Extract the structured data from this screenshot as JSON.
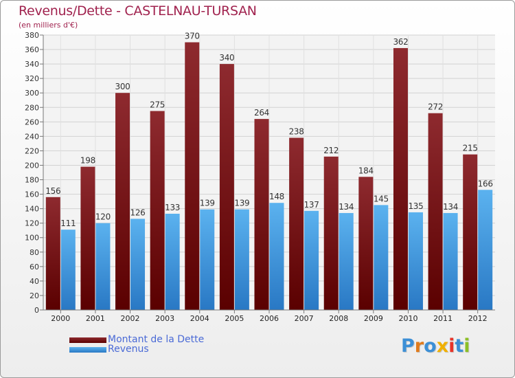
{
  "chart_data": {
    "type": "bar",
    "title": "Revenus/Dette - CASTELNAU-TURSAN",
    "subtitle": "(en milliers d'€)",
    "categories": [
      "2000",
      "2001",
      "2002",
      "2003",
      "2004",
      "2005",
      "2006",
      "2007",
      "2008",
      "2009",
      "2010",
      "2011",
      "2012"
    ],
    "series": [
      {
        "name": "Montant de la Dette",
        "color": "#7a1519",
        "values": [
          156,
          198,
          300,
          275,
          370,
          340,
          264,
          238,
          212,
          184,
          362,
          272,
          215
        ]
      },
      {
        "name": "Revenus",
        "color": "#3f9ee6",
        "values": [
          111,
          120,
          126,
          133,
          139,
          139,
          148,
          137,
          134,
          145,
          135,
          134,
          166
        ]
      }
    ],
    "ylim": [
      0,
      380
    ],
    "ytick_step": 20,
    "grid": true,
    "xlabel": "",
    "ylabel": ""
  },
  "logo": {
    "text": "Proxiti",
    "letter_colors": [
      "#3c8fd6",
      "#e07b1c",
      "#3c8fd6",
      "#f0b000",
      "#e8342a",
      "#3c8fd6",
      "#8cbf26"
    ]
  }
}
